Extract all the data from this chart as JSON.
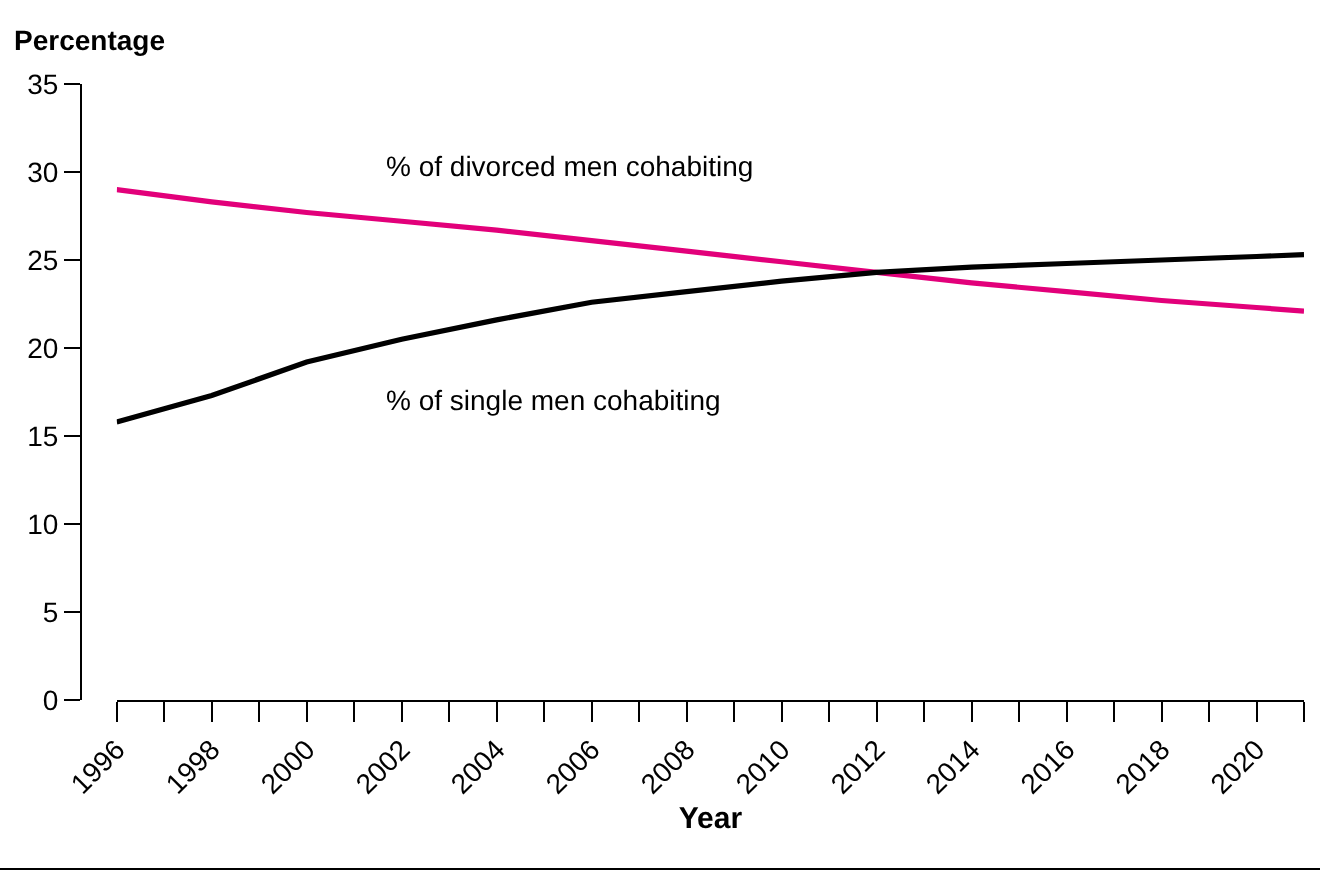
{
  "chart_data": {
    "type": "line",
    "ylabel": "Percentage",
    "xlabel": "Year",
    "x": [
      1996,
      1998,
      2000,
      2002,
      2004,
      2006,
      2008,
      2010,
      2012,
      2014,
      2016,
      2018,
      2020,
      2021
    ],
    "series": [
      {
        "name": "% of divorced men cohabiting",
        "color": "#e2007a",
        "values": [
          29.0,
          28.3,
          27.7,
          27.2,
          26.7,
          26.1,
          25.5,
          24.9,
          24.3,
          23.7,
          23.2,
          22.7,
          22.3,
          22.1
        ]
      },
      {
        "name": "% of single men cohabiting",
        "color": "#000000",
        "values": [
          15.8,
          17.3,
          19.2,
          20.5,
          21.6,
          22.6,
          23.2,
          23.8,
          24.3,
          24.6,
          24.8,
          25.0,
          25.2,
          25.3
        ]
      }
    ],
    "xlim": [
      1996,
      2021
    ],
    "xticks": [
      1996,
      {
        "value": 1997,
        "label": null
      },
      1998,
      {
        "value": 1999,
        "label": null
      },
      2000,
      {
        "value": 2001,
        "label": null
      },
      2002,
      {
        "value": 2003,
        "label": null
      },
      2004,
      {
        "value": 2005,
        "label": null
      },
      2006,
      {
        "value": 2007,
        "label": null
      },
      2008,
      {
        "value": 2009,
        "label": null
      },
      2010,
      {
        "value": 2011,
        "label": null
      },
      2012,
      {
        "value": 2013,
        "label": null
      },
      2014,
      {
        "value": 2015,
        "label": null
      },
      2016,
      {
        "value": 2017,
        "label": null
      },
      2018,
      {
        "value": 2019,
        "label": null
      },
      2020,
      {
        "value": 2021,
        "label": null
      }
    ],
    "ylim": [
      0,
      35
    ],
    "yticks": [
      0,
      5,
      10,
      15,
      20,
      25,
      30,
      35
    ],
    "grid": false,
    "legend": false,
    "marker": "none",
    "line_style": "solid"
  }
}
